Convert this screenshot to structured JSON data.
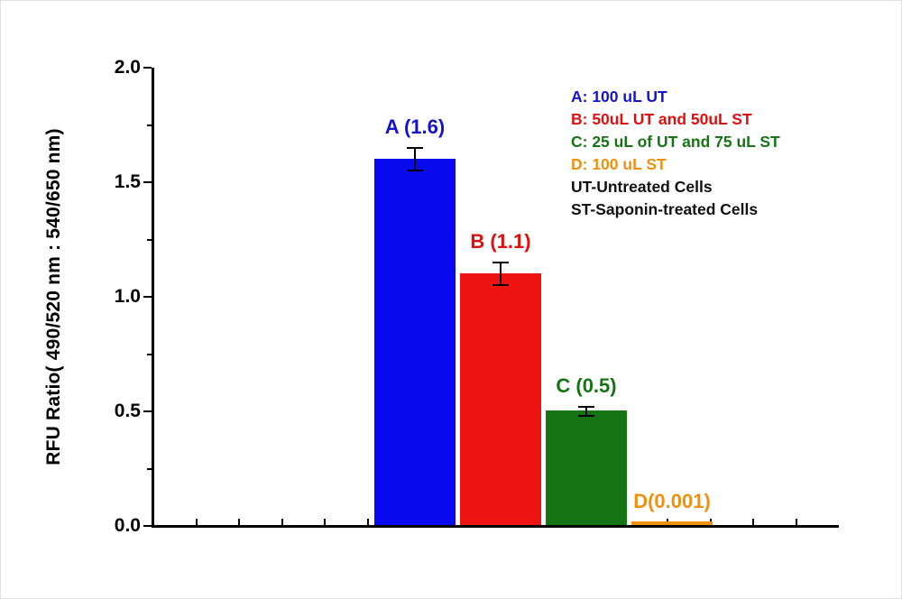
{
  "chart_data": {
    "type": "bar",
    "title": "",
    "xlabel": "",
    "ylabel": "RFU Ratio( 490/520 nm : 540/650 nm)",
    "ylim": [
      0,
      2.0
    ],
    "yticks": [
      0.0,
      0.5,
      1.0,
      1.5,
      2.0
    ],
    "ytick_labels": [
      "0.0",
      "0.5",
      "1.0",
      "1.5",
      "2.0"
    ],
    "yticks_minor": [
      0.25,
      0.75,
      1.25,
      1.75
    ],
    "grid": false,
    "categories": [
      "A",
      "B",
      "C",
      "D"
    ],
    "values": [
      1.6,
      1.1,
      0.5,
      0.001
    ],
    "errors": [
      0.05,
      0.05,
      0.02,
      0
    ],
    "bar_colors": [
      "#0a0af0",
      "#ee1414",
      "#157515",
      "#f0900f"
    ],
    "bar_labels": [
      "A (1.6)",
      "B (1.1)",
      "C (0.5)",
      "D(0.001)"
    ],
    "bar_label_colors": [
      "#1414cc",
      "#e01010",
      "#157515",
      "#f0900f"
    ],
    "legend_position": "top-right",
    "legend": [
      {
        "text": "A: 100 uL UT",
        "color": "#1414cc"
      },
      {
        "text": "B: 50uL UT and 50uL ST",
        "color": "#e01010"
      },
      {
        "text": "C: 25 uL of UT and 75 uL ST",
        "color": "#157515"
      },
      {
        "text": "D: 100 uL ST",
        "color": "#f0900f"
      },
      {
        "text": "UT-Untreated Cells",
        "color": "#111111"
      },
      {
        "text": "ST-Saponin-treated Cells",
        "color": "#111111"
      }
    ],
    "axis_color": "#000000",
    "background_color": "#ffffff"
  }
}
